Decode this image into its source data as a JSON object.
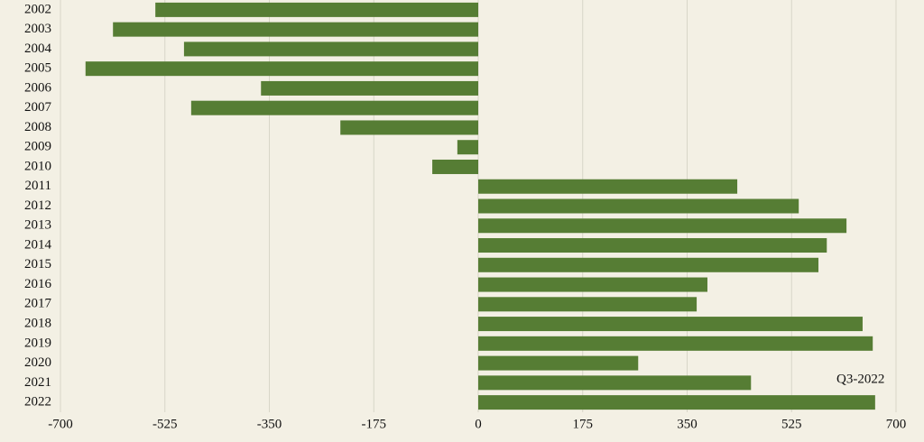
{
  "chart_data": {
    "type": "barh",
    "categories": [
      "2002",
      "2003",
      "2004",
      "2005",
      "2006",
      "2007",
      "2008",
      "2009",
      "2010",
      "2011",
      "2012",
      "2013",
      "2014",
      "2015",
      "2016",
      "2017",
      "2018",
      "2019",
      "2020",
      "2021",
      "2022"
    ],
    "values": [
      -541,
      -612,
      -493,
      -658,
      -364,
      -481,
      -231,
      -35,
      -77,
      434,
      537,
      617,
      584,
      570,
      384,
      366,
      644,
      661,
      268,
      457,
      665
    ],
    "color": "#567d34",
    "xlim": [
      -700,
      700
    ],
    "xticks": [
      -700,
      -525,
      -350,
      -175,
      0,
      175,
      350,
      525,
      700
    ],
    "grid": true,
    "annotations": [
      {
        "text": "Q3-2022"
      }
    ]
  }
}
